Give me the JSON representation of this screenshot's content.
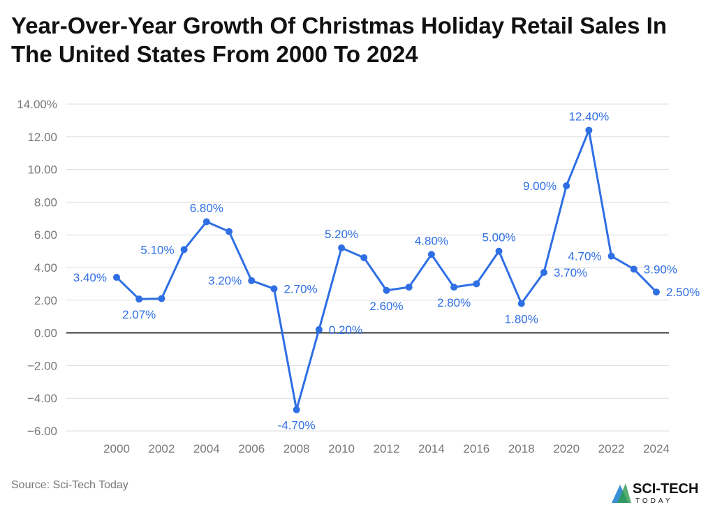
{
  "title": "Year-Over-Year Growth Of Christmas Holiday Retail Sales In The United States From 2000 To 2024",
  "source": "Source: Sci-Tech Today",
  "logo": {
    "text_main": "SCI-TECH",
    "text_sub": "TODAY"
  },
  "colors": {
    "series": "#2f6fe4",
    "label": "#2f6fe4",
    "grid": "#dddddd",
    "zero_line": "#000000",
    "tick": "#777777"
  },
  "chart_data": {
    "type": "line",
    "title": "Year-Over-Year Growth Of Christmas Holiday Retail Sales In The United States From 2000 To 2024",
    "xlabel": "",
    "ylabel": "",
    "x": [
      2000,
      2001,
      2002,
      2003,
      2004,
      2005,
      2006,
      2007,
      2008,
      2009,
      2010,
      2011,
      2012,
      2013,
      2014,
      2015,
      2016,
      2017,
      2018,
      2019,
      2020,
      2021,
      2022,
      2023,
      2024
    ],
    "values": [
      3.4,
      2.07,
      2.1,
      5.1,
      6.8,
      6.2,
      3.2,
      2.7,
      -4.7,
      0.2,
      5.2,
      4.6,
      2.6,
      2.8,
      4.8,
      2.8,
      3.0,
      5.0,
      1.8,
      3.7,
      9.0,
      12.4,
      4.7,
      3.9,
      2.5
    ],
    "data_labels": [
      "3.40%",
      "2.07%",
      null,
      "5.10%",
      "6.80%",
      null,
      "3.20%",
      "2.70%",
      "-4.70%",
      "0.20%",
      "5.20%",
      null,
      "2.60%",
      null,
      "4.80%",
      "2.80%",
      null,
      "5.00%",
      "1.80%",
      "3.70%",
      "9.00%",
      "12.40%",
      "4.70%",
      "3.90%",
      "2.50%"
    ],
    "ylim": [
      -6,
      14
    ],
    "y_ticks": [
      "14.00%",
      "12.00",
      "10.00",
      "8.00",
      "6.00",
      "4.00",
      "2.00",
      "0.00",
      "−2.00",
      "−4.00",
      "−6.00"
    ],
    "x_ticks": [
      "2000",
      "2002",
      "2004",
      "2006",
      "2008",
      "2010",
      "2012",
      "2014",
      "2016",
      "2018",
      "2020",
      "2022",
      "2024"
    ],
    "grid": true,
    "legend": "none"
  }
}
